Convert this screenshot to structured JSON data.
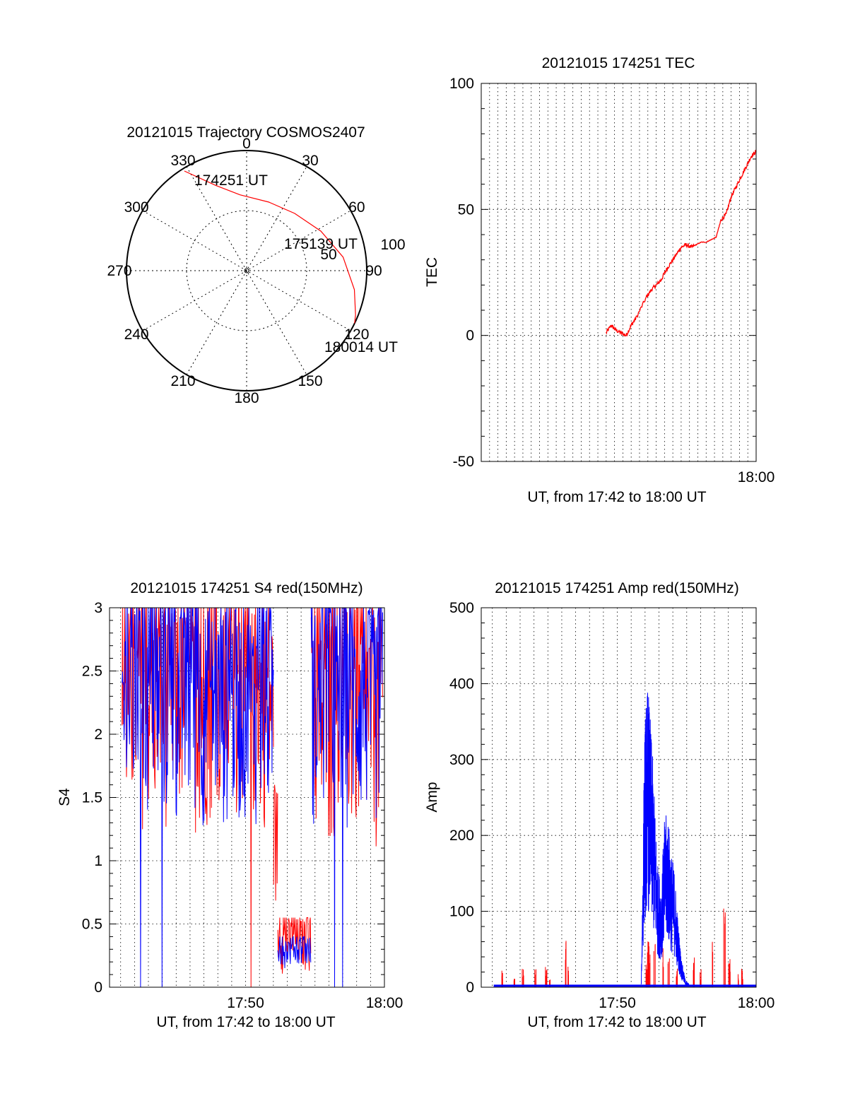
{
  "chart_data": [
    {
      "type": "polar",
      "title": "20121015 Trajectory COSMOS2407",
      "angle_labels": [
        "0",
        "30",
        "60",
        "90",
        "120",
        "150",
        "180",
        "210",
        "240",
        "270",
        "300",
        "330"
      ],
      "radial_labels": [
        "50",
        "100"
      ],
      "trajectory": [
        {
          "az": 328,
          "el": 2
        },
        {
          "az": 340,
          "el": 22
        },
        {
          "az": 355,
          "el": 33
        },
        {
          "az": 18,
          "el": 36
        },
        {
          "az": 40,
          "el": 34
        },
        {
          "az": 62,
          "el": 27
        },
        {
          "az": 82,
          "el": 17
        },
        {
          "az": 100,
          "el": 8
        },
        {
          "az": 112,
          "el": 2
        },
        {
          "az": 116,
          "el": 0
        }
      ],
      "annotations": [
        {
          "text": "174251 UT",
          "az": 328,
          "el": 2
        },
        {
          "text": "175139 UT",
          "az": 62,
          "el": 27
        },
        {
          "text": "180014 UT",
          "az": 116,
          "el": 0
        }
      ],
      "colors": {
        "trajectory": "#ff0000"
      }
    },
    {
      "type": "line",
      "title": "20121015 174251 TEC",
      "xlabel": "UT, from 17:42 to 18:00 UT",
      "ylabel": "TEC",
      "xlim": [
        17.45,
        18.0
      ],
      "ylim": [
        -50,
        100
      ],
      "yticks": [
        -50,
        0,
        50,
        100
      ],
      "xtick_labels": [
        {
          "x": 18.0,
          "label": "18:00"
        }
      ],
      "series": [
        {
          "color": "#ff0000",
          "x": [
            17.7,
            17.71,
            17.72,
            17.73,
            17.74,
            17.75,
            17.76,
            17.78,
            17.79,
            17.8,
            17.81,
            17.82,
            17.83,
            17.84,
            17.85,
            17.86,
            17.87,
            17.88,
            17.89,
            17.9,
            17.91,
            17.92,
            17.93,
            17.94,
            17.95,
            17.96,
            17.97,
            17.98,
            17.99,
            18.0
          ],
          "y": [
            1,
            4,
            2,
            1,
            0,
            4,
            7,
            15,
            18,
            20,
            22,
            26,
            29,
            32,
            35,
            36,
            35,
            36,
            37,
            37,
            38,
            39,
            46,
            48,
            55,
            59,
            63,
            67,
            71,
            73
          ]
        }
      ]
    },
    {
      "type": "line",
      "title": "20121015 174251 S4 red(150MHz)",
      "xlabel": "UT, from 17:42 to 18:00 UT",
      "ylabel": "S4",
      "xlim": [
        17.67,
        18.0
      ],
      "ylim": [
        0,
        3
      ],
      "yticks": [
        0,
        0.5,
        1,
        1.5,
        2,
        2.5,
        3
      ],
      "ytick_labels": [
        "0",
        "0.5",
        "1",
        "1.5",
        "2",
        "2.5",
        "3"
      ],
      "xtick_labels": [
        {
          "x": 17.8333,
          "label": "17:50"
        },
        {
          "x": 18.0,
          "label": "18:00"
        }
      ],
      "series": [
        {
          "color": "#ff0000",
          "segments": [
            {
              "x_start": 17.685,
              "x_end": 17.867,
              "low": 1.2,
              "high": 3.0,
              "dips": [
                17.84
              ]
            },
            {
              "x_start": 17.867,
              "x_end": 17.872,
              "low": 0.6,
              "high": 1.6
            },
            {
              "x_start": 17.872,
              "x_end": 17.912,
              "low": 0.1,
              "high": 0.55
            },
            {
              "x_start": 17.912,
              "x_end": 17.998,
              "low": 1.0,
              "high": 3.0
            }
          ]
        },
        {
          "color": "#0000ff",
          "segments": [
            {
              "x_start": 17.685,
              "x_end": 17.867,
              "low": 1.2,
              "high": 3.0,
              "dips": [
                17.707,
                17.733
              ]
            },
            {
              "x_start": 17.872,
              "x_end": 17.912,
              "low": 0.15,
              "high": 0.4
            },
            {
              "x_start": 17.912,
              "x_end": 17.998,
              "low": 1.2,
              "high": 3.0,
              "dips": [
                17.94,
                17.95
              ]
            }
          ]
        }
      ]
    },
    {
      "type": "line",
      "title": "20121015 174251 Amp red(150MHz)",
      "xlabel": "UT, from 17:42 to 18:00 UT",
      "ylabel": "Amp",
      "xlim": [
        17.67,
        18.0
      ],
      "ylim": [
        0,
        500
      ],
      "yticks": [
        0,
        100,
        200,
        300,
        400,
        500
      ],
      "xtick_labels": [
        {
          "x": 17.8333,
          "label": "17:50"
        },
        {
          "x": 18.0,
          "label": "18:00"
        }
      ],
      "series": [
        {
          "color": "#ff0000",
          "spikes": [
            {
              "x": 17.695,
              "y": 25
            },
            {
              "x": 17.71,
              "y": 20
            },
            {
              "x": 17.72,
              "y": 30
            },
            {
              "x": 17.735,
              "y": 25
            },
            {
              "x": 17.748,
              "y": 30
            },
            {
              "x": 17.752,
              "y": 15
            },
            {
              "x": 17.771,
              "y": 65
            },
            {
              "x": 17.775,
              "y": 35
            },
            {
              "x": 17.868,
              "y": 30
            },
            {
              "x": 17.87,
              "y": 70
            },
            {
              "x": 17.872,
              "y": 62
            },
            {
              "x": 17.878,
              "y": 58
            },
            {
              "x": 17.888,
              "y": 55
            },
            {
              "x": 17.895,
              "y": 40
            },
            {
              "x": 17.905,
              "y": 30
            },
            {
              "x": 17.925,
              "y": 40
            },
            {
              "x": 17.933,
              "y": 25
            },
            {
              "x": 17.948,
              "y": 65
            },
            {
              "x": 17.962,
              "y": 125
            },
            {
              "x": 17.968,
              "y": 45
            },
            {
              "x": 17.978,
              "y": 20
            },
            {
              "x": 17.983,
              "y": 25
            }
          ]
        },
        {
          "color": "#0000ff",
          "envelope": [
            {
              "x": 17.862,
              "y": 5
            },
            {
              "x": 17.866,
              "y": 340
            },
            {
              "x": 17.868,
              "y": 380
            },
            {
              "x": 17.87,
              "y": 405
            },
            {
              "x": 17.875,
              "y": 320
            },
            {
              "x": 17.878,
              "y": 250
            },
            {
              "x": 17.882,
              "y": 160
            },
            {
              "x": 17.886,
              "y": 140
            },
            {
              "x": 17.89,
              "y": 220
            },
            {
              "x": 17.894,
              "y": 235
            },
            {
              "x": 17.898,
              "y": 180
            },
            {
              "x": 17.902,
              "y": 155
            },
            {
              "x": 17.906,
              "y": 90
            },
            {
              "x": 17.91,
              "y": 40
            },
            {
              "x": 17.915,
              "y": 10
            },
            {
              "x": 17.92,
              "y": 3
            }
          ]
        }
      ]
    }
  ]
}
